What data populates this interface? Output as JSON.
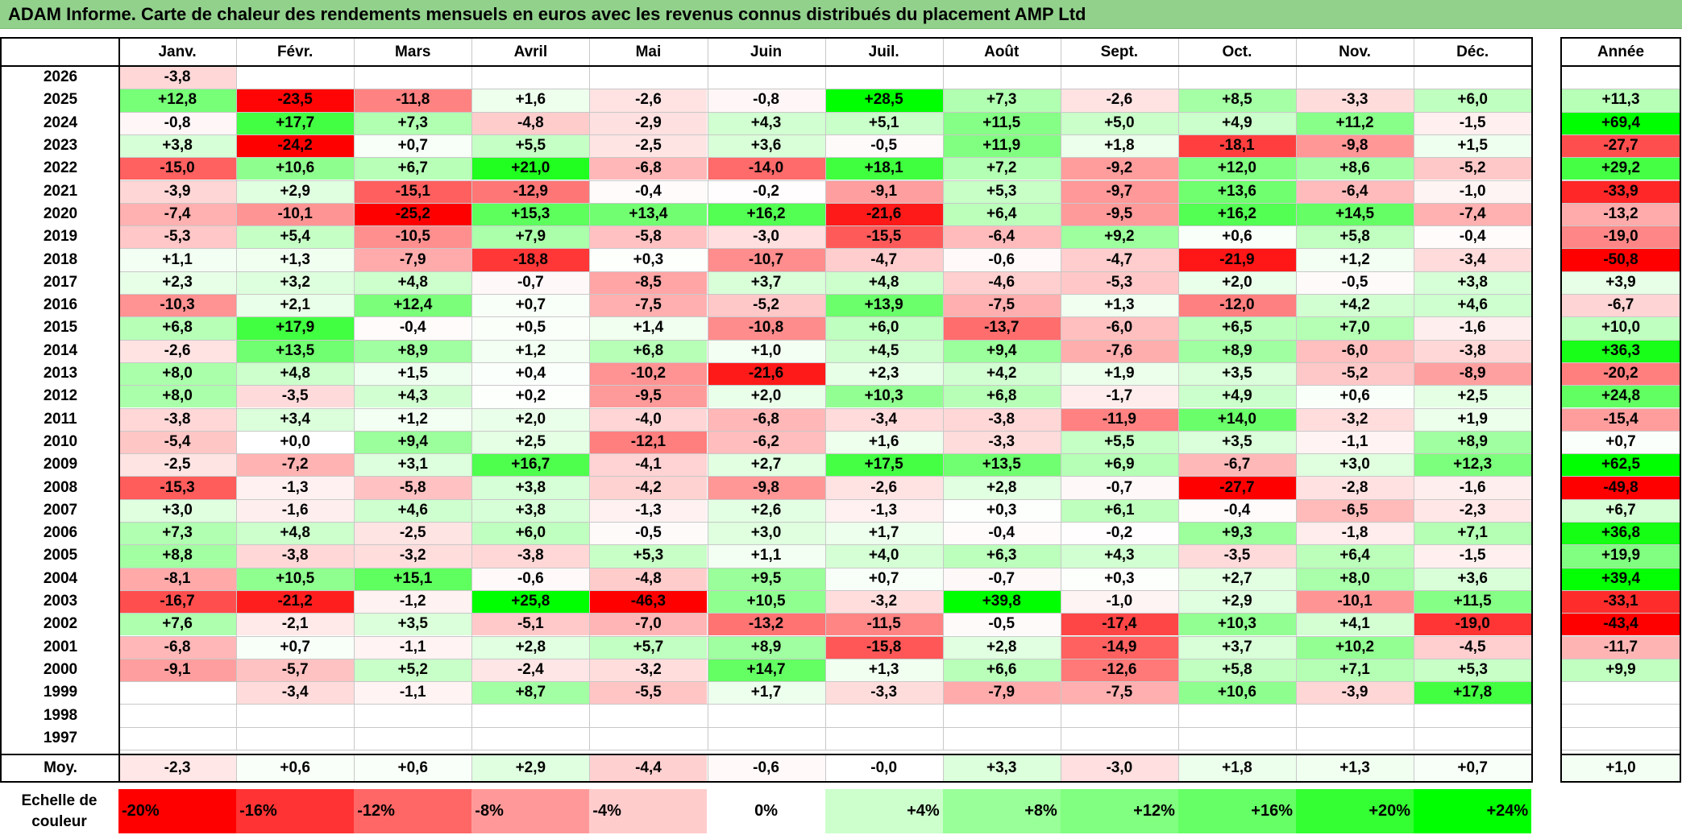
{
  "title": "ADAM Informe. Carte de chaleur des rendements mensuels en euros avec les revenus connus distribués du placement AMP Ltd",
  "chart_data": {
    "type": "heatmap",
    "title": "ADAM Informe. Carte de chaleur des rendements mensuels en euros avec les revenus connus distribués du placement AMP Ltd",
    "months": [
      "Janv.",
      "Févr.",
      "Mars",
      "Avril",
      "Mai",
      "Juin",
      "Juil.",
      "Août",
      "Sept.",
      "Oct.",
      "Nov.",
      "Déc."
    ],
    "annual_header": "Année",
    "rows": [
      {
        "year": "2026",
        "values": [
          "-3,8",
          "",
          "",
          "",
          "",
          "",
          "",
          "",
          "",
          "",
          "",
          ""
        ],
        "annual": ""
      },
      {
        "year": "2025",
        "values": [
          "+12,8",
          "-23,5",
          "-11,8",
          "+1,6",
          "-2,6",
          "-0,8",
          "+28,5",
          "+7,3",
          "-2,6",
          "+8,5",
          "-3,3",
          "+6,0"
        ],
        "annual": "+11,3"
      },
      {
        "year": "2024",
        "values": [
          "-0,8",
          "+17,7",
          "+7,3",
          "-4,8",
          "-2,9",
          "+4,3",
          "+5,1",
          "+11,5",
          "+5,0",
          "+4,9",
          "+11,2",
          "-1,5"
        ],
        "annual": "+69,4"
      },
      {
        "year": "2023",
        "values": [
          "+3,8",
          "-24,2",
          "+0,7",
          "+5,5",
          "-2,5",
          "+3,6",
          "-0,5",
          "+11,9",
          "+1,8",
          "-18,1",
          "-9,8",
          "+1,5"
        ],
        "annual": "-27,7"
      },
      {
        "year": "2022",
        "values": [
          "-15,0",
          "+10,6",
          "+6,7",
          "+21,0",
          "-6,8",
          "-14,0",
          "+18,1",
          "+7,2",
          "-9,2",
          "+12,0",
          "+8,6",
          "-5,2"
        ],
        "annual": "+29,2"
      },
      {
        "year": "2021",
        "values": [
          "-3,9",
          "+2,9",
          "-15,1",
          "-12,9",
          "-0,4",
          "-0,2",
          "-9,1",
          "+5,3",
          "-9,7",
          "+13,6",
          "-6,4",
          "-1,0"
        ],
        "annual": "-33,9"
      },
      {
        "year": "2020",
        "values": [
          "-7,4",
          "-10,1",
          "-25,2",
          "+15,3",
          "+13,4",
          "+16,2",
          "-21,6",
          "+6,4",
          "-9,5",
          "+16,2",
          "+14,5",
          "-7,4"
        ],
        "annual": "-13,2"
      },
      {
        "year": "2019",
        "values": [
          "-5,3",
          "+5,4",
          "-10,5",
          "+7,9",
          "-5,8",
          "-3,0",
          "-15,5",
          "-6,4",
          "+9,2",
          "+0,6",
          "+5,8",
          "-0,4"
        ],
        "annual": "-19,0"
      },
      {
        "year": "2018",
        "values": [
          "+1,1",
          "+1,3",
          "-7,9",
          "-18,8",
          "+0,3",
          "-10,7",
          "-4,7",
          "-0,6",
          "-4,7",
          "-21,9",
          "+1,2",
          "-3,4"
        ],
        "annual": "-50,8"
      },
      {
        "year": "2017",
        "values": [
          "+2,3",
          "+3,2",
          "+4,8",
          "-0,7",
          "-8,5",
          "+3,7",
          "+4,8",
          "-4,6",
          "-5,3",
          "+2,0",
          "-0,5",
          "+3,8"
        ],
        "annual": "+3,9"
      },
      {
        "year": "2016",
        "values": [
          "-10,3",
          "+2,1",
          "+12,4",
          "+0,7",
          "-7,5",
          "-5,2",
          "+13,9",
          "-7,5",
          "+1,3",
          "-12,0",
          "+4,2",
          "+4,6"
        ],
        "annual": "-6,7"
      },
      {
        "year": "2015",
        "values": [
          "+6,8",
          "+17,9",
          "-0,4",
          "+0,5",
          "+1,4",
          "-10,8",
          "+6,0",
          "-13,7",
          "-6,0",
          "+6,5",
          "+7,0",
          "-1,6"
        ],
        "annual": "+10,0"
      },
      {
        "year": "2014",
        "values": [
          "-2,6",
          "+13,5",
          "+8,9",
          "+1,2",
          "+6,8",
          "+1,0",
          "+4,5",
          "+9,4",
          "-7,6",
          "+8,9",
          "-6,0",
          "-3,8"
        ],
        "annual": "+36,3"
      },
      {
        "year": "2013",
        "values": [
          "+8,0",
          "+4,8",
          "+1,5",
          "+0,4",
          "-10,2",
          "-21,6",
          "+2,3",
          "+4,2",
          "+1,9",
          "+3,5",
          "-5,2",
          "-8,9"
        ],
        "annual": "-20,2"
      },
      {
        "year": "2012",
        "values": [
          "+8,0",
          "-3,5",
          "+4,3",
          "+0,2",
          "-9,5",
          "+2,0",
          "+10,3",
          "+6,8",
          "-1,7",
          "+4,9",
          "+0,6",
          "+2,5"
        ],
        "annual": "+24,8"
      },
      {
        "year": "2011",
        "values": [
          "-3,8",
          "+3,4",
          "+1,2",
          "+2,0",
          "-4,0",
          "-6,8",
          "-3,4",
          "-3,8",
          "-11,9",
          "+14,0",
          "-3,2",
          "+1,9"
        ],
        "annual": "-15,4"
      },
      {
        "year": "2010",
        "values": [
          "-5,4",
          "+0,0",
          "+9,4",
          "+2,5",
          "-12,1",
          "-6,2",
          "+1,6",
          "-3,3",
          "+5,5",
          "+3,5",
          "-1,1",
          "+8,9"
        ],
        "annual": "+0,7"
      },
      {
        "year": "2009",
        "values": [
          "-2,5",
          "-7,2",
          "+3,1",
          "+16,7",
          "-4,1",
          "+2,7",
          "+17,5",
          "+13,5",
          "+6,9",
          "-6,7",
          "+3,0",
          "+12,3"
        ],
        "annual": "+62,5"
      },
      {
        "year": "2008",
        "values": [
          "-15,3",
          "-1,3",
          "-5,8",
          "+3,8",
          "-4,2",
          "-9,8",
          "-2,6",
          "+2,8",
          "-0,7",
          "-27,7",
          "-2,8",
          "-1,6"
        ],
        "annual": "-49,8"
      },
      {
        "year": "2007",
        "values": [
          "+3,0",
          "-1,6",
          "+4,6",
          "+3,8",
          "-1,3",
          "+2,6",
          "-1,3",
          "+0,3",
          "+6,1",
          "-0,4",
          "-6,5",
          "-2,3"
        ],
        "annual": "+6,7"
      },
      {
        "year": "2006",
        "values": [
          "+7,3",
          "+4,8",
          "-2,5",
          "+6,0",
          "-0,5",
          "+3,0",
          "+1,7",
          "-0,4",
          "-0,2",
          "+9,3",
          "-1,8",
          "+7,1"
        ],
        "annual": "+36,8"
      },
      {
        "year": "2005",
        "values": [
          "+8,8",
          "-3,8",
          "-3,2",
          "-3,8",
          "+5,3",
          "+1,1",
          "+4,0",
          "+6,3",
          "+4,3",
          "-3,5",
          "+6,4",
          "-1,5"
        ],
        "annual": "+19,9"
      },
      {
        "year": "2004",
        "values": [
          "-8,1",
          "+10,5",
          "+15,1",
          "-0,6",
          "-4,8",
          "+9,5",
          "+0,7",
          "-0,7",
          "+0,3",
          "+2,7",
          "+8,0",
          "+3,6"
        ],
        "annual": "+39,4"
      },
      {
        "year": "2003",
        "values": [
          "-16,7",
          "-21,2",
          "-1,2",
          "+25,8",
          "-46,3",
          "+10,5",
          "-3,2",
          "+39,8",
          "-1,0",
          "+2,9",
          "-10,1",
          "+11,5"
        ],
        "annual": "-33,1"
      },
      {
        "year": "2002",
        "values": [
          "+7,6",
          "-2,1",
          "+3,5",
          "-5,1",
          "-7,0",
          "-13,2",
          "-11,5",
          "-0,5",
          "-17,4",
          "+10,3",
          "+4,1",
          "-19,0"
        ],
        "annual": "-43,4"
      },
      {
        "year": "2001",
        "values": [
          "-6,8",
          "+0,7",
          "-1,1",
          "+2,8",
          "+5,7",
          "+8,9",
          "-15,8",
          "+2,8",
          "-14,9",
          "+3,7",
          "+10,2",
          "-4,5"
        ],
        "annual": "-11,7"
      },
      {
        "year": "2000",
        "values": [
          "-9,1",
          "-5,7",
          "+5,2",
          "-2,4",
          "-3,2",
          "+14,7",
          "+1,3",
          "+6,6",
          "-12,6",
          "+5,8",
          "+7,1",
          "+5,3"
        ],
        "annual": "+9,9"
      },
      {
        "year": "1999",
        "values": [
          "",
          "-3,4",
          "-1,1",
          "+8,7",
          "-5,5",
          "+1,7",
          "-3,3",
          "-7,9",
          "-7,5",
          "+10,6",
          "-3,9",
          "+17,8"
        ],
        "annual": ""
      },
      {
        "year": "1998",
        "values": [
          "",
          "",
          "",
          "",
          "",
          "",
          "",
          "",
          "",
          "",
          "",
          ""
        ],
        "annual": ""
      },
      {
        "year": "1997",
        "values": [
          "",
          "",
          "",
          "",
          "",
          "",
          "",
          "",
          "",
          "",
          "",
          ""
        ],
        "annual": ""
      }
    ],
    "average": {
      "label": "Moy.",
      "values": [
        "-2,3",
        "+0,6",
        "+0,6",
        "+2,9",
        "-4,4",
        "-0,6",
        "-0,0",
        "+3,3",
        "-3,0",
        "+1,8",
        "+1,3",
        "+0,7"
      ],
      "annual": "+1,0"
    },
    "scale": {
      "label_line1": "Echelle de",
      "label_line2": "couleur",
      "entries": [
        {
          "text": "-20%",
          "color": "#ff0000"
        },
        {
          "text": "-16%",
          "color": "#ff3333"
        },
        {
          "text": "-12%",
          "color": "#ff6666"
        },
        {
          "text": "-8%",
          "color": "#ff9999"
        },
        {
          "text": "-4%",
          "color": "#ffcccc"
        },
        {
          "text": "0%",
          "color": "#ffffff"
        },
        {
          "text": "+4%",
          "color": "#ccffcc"
        },
        {
          "text": "+8%",
          "color": "#99ff99"
        },
        {
          "text": "+12%",
          "color": "#80ff80"
        },
        {
          "text": "+16%",
          "color": "#66ff66"
        },
        {
          "text": "+20%",
          "color": "#33ff33"
        },
        {
          "text": "+24%",
          "color": "#00ff00"
        }
      ]
    },
    "colors": {
      "title_bg": "#92d18c",
      "negative_max": "#ff0000",
      "positive_max": "#00ff00",
      "neutral": "#ffffff"
    }
  }
}
